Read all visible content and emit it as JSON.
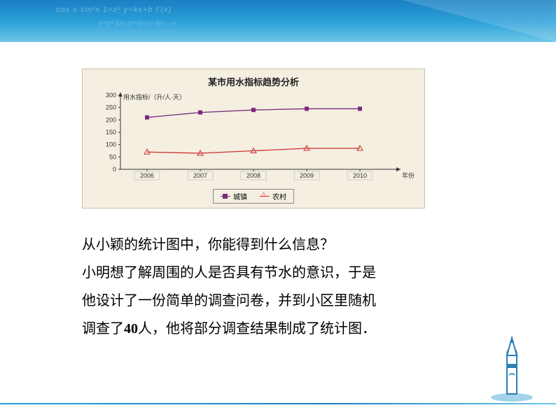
{
  "header": {
    "formula1": "cos x   sin²x   1=z²   y=kx+b  f'(x)",
    "formula2": "x²+y²   ∫dx   a²+b²=c²   lim→∞"
  },
  "chart": {
    "type": "line",
    "title": "某市用水指标趋势分析",
    "ylabel": "用水指标/（升/人·天）",
    "xlabel": "年份",
    "background_color": "#f4efe1",
    "ylim": [
      0,
      300
    ],
    "ytick_step": 50,
    "yticks": [
      0,
      50,
      100,
      150,
      200,
      250,
      300
    ],
    "categories": [
      "2006",
      "2007",
      "2008",
      "2009",
      "2010"
    ],
    "series": [
      {
        "name": "城镇",
        "color": "#7a2a7a",
        "marker": "square",
        "values": [
          210,
          230,
          240,
          245,
          245
        ]
      },
      {
        "name": "农村",
        "color": "#d03030",
        "marker": "triangle",
        "values": [
          70,
          65,
          75,
          85,
          85
        ]
      }
    ],
    "axis_color": "#333333",
    "tick_fontsize": 9,
    "title_fontsize": 13
  },
  "text": {
    "line1": "从小颖的统计图中，你能得到什么信息？",
    "line2": "小明想了解周围的人是否具有节水的意识，于是",
    "line3": "他设计了一份简单的调查问卷，并到小区里随机",
    "line4a": "调查了",
    "line4b": "40",
    "line4c": "人，他将部分调查结果制成了统计图．"
  }
}
